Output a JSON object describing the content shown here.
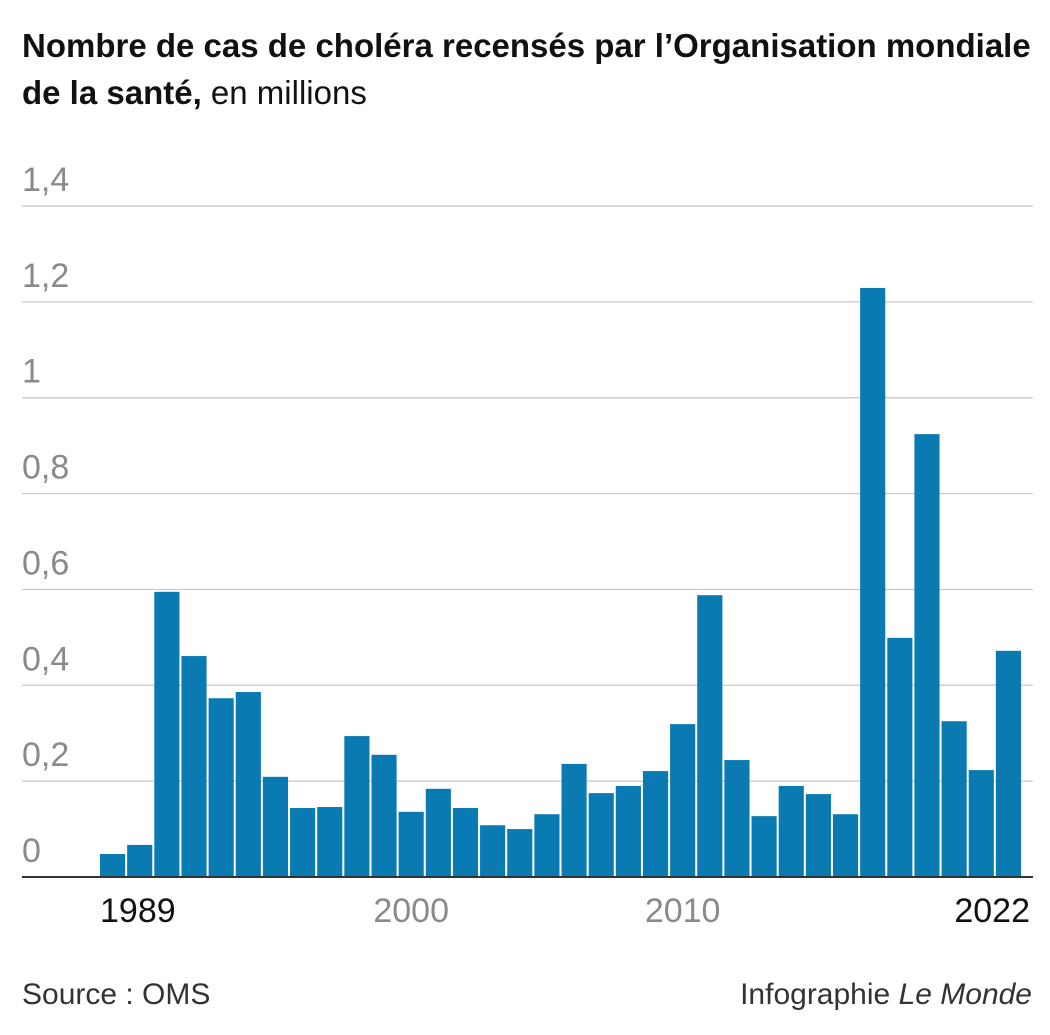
{
  "chart_data": {
    "type": "bar",
    "title": "Nombre de cas de choléra recensés par l’Organisation mondiale de la santé,",
    "subtitle": "en millions",
    "x": [
      1989,
      1990,
      1991,
      1992,
      1993,
      1994,
      1995,
      1996,
      1997,
      1998,
      1999,
      2000,
      2001,
      2002,
      2003,
      2004,
      2005,
      2006,
      2007,
      2008,
      2009,
      2010,
      2011,
      2012,
      2013,
      2014,
      2015,
      2016,
      2017,
      2018,
      2019,
      2020,
      2021,
      2022
    ],
    "values": [
      0.048,
      0.067,
      0.595,
      0.461,
      0.373,
      0.386,
      0.209,
      0.144,
      0.146,
      0.294,
      0.255,
      0.136,
      0.184,
      0.144,
      0.108,
      0.1,
      0.131,
      0.236,
      0.175,
      0.19,
      0.221,
      0.319,
      0.588,
      0.244,
      0.127,
      0.19,
      0.173,
      0.131,
      1.229,
      0.499,
      0.924,
      0.325,
      0.223,
      0.472
    ],
    "color": "#0a7bb2",
    "xlim": [
      1988.5,
      2022.5
    ],
    "xticks": [
      1989,
      2000,
      2010,
      2022
    ],
    "ylim": [
      0,
      1.4
    ],
    "yticks": [
      0,
      {
        "value": 0.2,
        "label": "0,2"
      },
      {
        "value": 0.4,
        "label": "0,4"
      },
      {
        "value": 0.6,
        "label": "0,6"
      },
      {
        "value": 0.8,
        "label": "0,8"
      },
      1,
      {
        "value": 1.2,
        "label": "1,2"
      },
      {
        "value": 1.4,
        "label": "1,4"
      }
    ],
    "grid": true,
    "source": "Source : OMS",
    "credit": "Infographie",
    "credit_publication": "Le Monde"
  }
}
